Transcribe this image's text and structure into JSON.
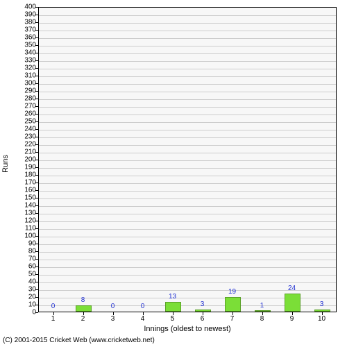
{
  "chart": {
    "type": "bar",
    "background_color": "#f7f7f7",
    "grid_color": "#cccccc",
    "border_color": "#000000",
    "bar_color": "#7bde37",
    "bar_border_color": "#5aa028",
    "label_color": "#1f2ed1",
    "ylim": [
      0,
      400
    ],
    "ytick_step": 10,
    "x_axis_label": "Innings (oldest to newest)",
    "y_axis_label": "Runs",
    "categories": [
      "1",
      "2",
      "3",
      "4",
      "5",
      "6",
      "7",
      "8",
      "9",
      "10"
    ],
    "values": [
      0,
      8,
      0,
      0,
      13,
      3,
      19,
      1,
      24,
      3
    ],
    "bar_width_ratio": 0.55,
    "label_fontsize": 10,
    "axis_title_fontsize": 11
  },
  "footer": {
    "text": "(C) 2001-2015 Cricket Web (www.cricketweb.net)"
  }
}
